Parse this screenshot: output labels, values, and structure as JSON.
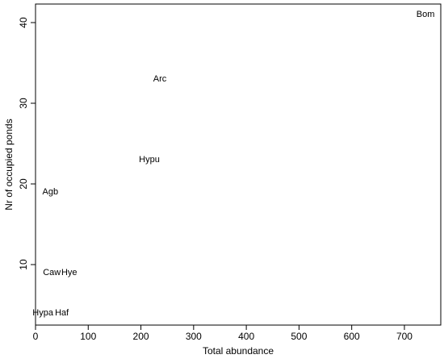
{
  "chart_data": {
    "type": "scatter",
    "xlabel": "Total abundance",
    "ylabel": "Nr of occupied ponds",
    "point_labels": [
      "Bom",
      "Arc",
      "Hypu",
      "Agb",
      "Caw",
      "Hye",
      "Hypa",
      "Haf"
    ],
    "x": [
      740,
      236,
      216,
      28,
      31,
      64,
      14,
      50
    ],
    "values": [
      41,
      33,
      23,
      19,
      9,
      9,
      4,
      4
    ],
    "xlim": [
      0,
      769
    ],
    "ylim": [
      2.5,
      42.3
    ],
    "xticks": [
      0,
      100,
      200,
      300,
      400,
      500,
      600,
      700
    ],
    "yticks": [
      10,
      20,
      30,
      40
    ]
  }
}
